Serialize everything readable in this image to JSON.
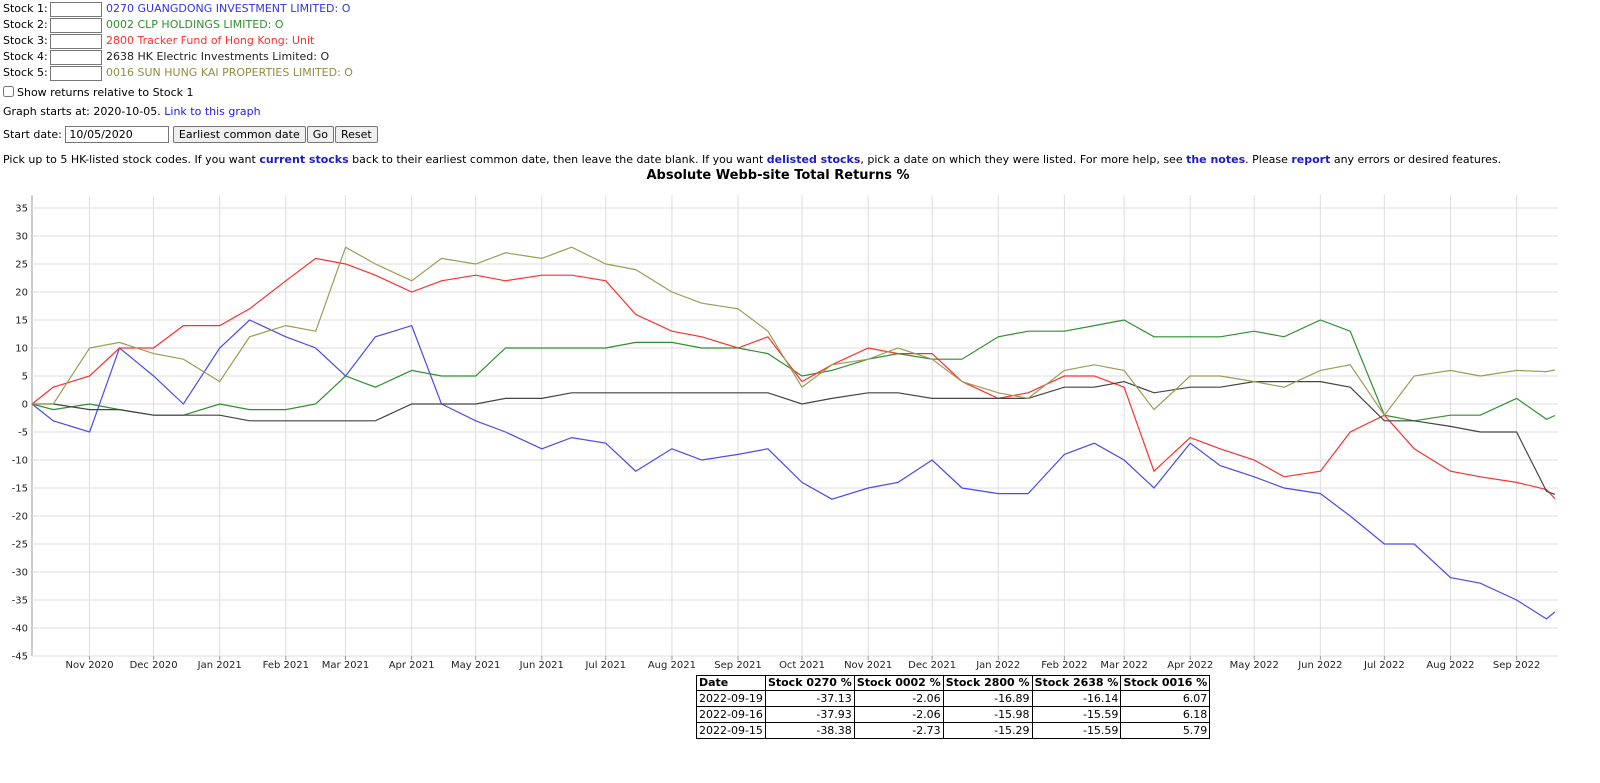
{
  "form": {
    "stocks": [
      {
        "label": "Stock 1:",
        "name": "0270 GUANGDONG INVESTMENT LIMITED: O"
      },
      {
        "label": "Stock 2:",
        "name": "0002 CLP HOLDINGS LIMITED: O"
      },
      {
        "label": "Stock 3:",
        "name": "2800 Tracker Fund of Hong Kong: Unit"
      },
      {
        "label": "Stock 4:",
        "name": "2638 HK Electric Investments Limited: O"
      },
      {
        "label": "Stock 5:",
        "name": "0016 SUN HUNG KAI PROPERTIES LIMITED: O"
      }
    ],
    "relative_label": "Show returns relative to Stock 1",
    "graph_starts": "Graph starts at: 2020-10-05.",
    "graph_link": "Link to this graph",
    "start_date_label": "Start date:",
    "start_date": "10/05/2020",
    "buttons": [
      "Earliest common date",
      "Go",
      "Reset"
    ]
  },
  "help": [
    {
      "text": "Pick up to 5 HK-listed stock codes. If you want "
    },
    {
      "link": "current stocks"
    },
    {
      "text": " back to their earliest common date, then leave the date blank. If you want "
    },
    {
      "link": "delisted stocks"
    },
    {
      "text": ", pick a date on which they were listed. For more help, see "
    },
    {
      "link": "the notes"
    },
    {
      "text": ". Please "
    },
    {
      "link": "report"
    },
    {
      "text": " any errors or desired features."
    }
  ],
  "chart_data": {
    "type": "line",
    "title": "Absolute Webb-site Total Returns %",
    "x": [
      "2020-10-05",
      "2020-10-15",
      "2020-11-01",
      "2020-11-15",
      "2020-12-01",
      "2020-12-15",
      "2021-01-01",
      "2021-01-15",
      "2021-02-01",
      "2021-02-15",
      "2021-03-01",
      "2021-03-15",
      "2021-04-01",
      "2021-04-15",
      "2021-05-01",
      "2021-05-15",
      "2021-06-01",
      "2021-06-15",
      "2021-07-01",
      "2021-07-15",
      "2021-08-01",
      "2021-08-15",
      "2021-09-01",
      "2021-09-15",
      "2021-10-01",
      "2021-10-15",
      "2021-11-01",
      "2021-11-15",
      "2021-12-01",
      "2021-12-15",
      "2022-01-01",
      "2022-01-15",
      "2022-02-01",
      "2022-02-15",
      "2022-03-01",
      "2022-03-15",
      "2022-04-01",
      "2022-04-15",
      "2022-05-01",
      "2022-05-15",
      "2022-06-01",
      "2022-06-15",
      "2022-07-01",
      "2022-07-15",
      "2022-08-01",
      "2022-08-15",
      "2022-09-01",
      "2022-09-15",
      "2022-09-19"
    ],
    "xlim": [
      "2020-10-05",
      "2022-09-19"
    ],
    "xticks": [
      {
        "value": "2020-11-01",
        "label": "Nov 2020"
      },
      {
        "value": "2020-12-01",
        "label": "Dec 2020"
      },
      {
        "value": "2021-01-01",
        "label": "Jan 2021"
      },
      {
        "value": "2021-02-01",
        "label": "Feb 2021"
      },
      {
        "value": "2021-03-01",
        "label": "Mar 2021"
      },
      {
        "value": "2021-04-01",
        "label": "Apr 2021"
      },
      {
        "value": "2021-05-01",
        "label": "May 2021"
      },
      {
        "value": "2021-06-01",
        "label": "Jun 2021"
      },
      {
        "value": "2021-07-01",
        "label": "Jul 2021"
      },
      {
        "value": "2021-08-01",
        "label": "Aug 2021"
      },
      {
        "value": "2021-09-01",
        "label": "Sep 2021"
      },
      {
        "value": "2021-10-01",
        "label": "Oct 2021"
      },
      {
        "value": "2021-11-01",
        "label": "Nov 2021"
      },
      {
        "value": "2021-12-01",
        "label": "Dec 2021"
      },
      {
        "value": "2022-01-01",
        "label": "Jan 2022"
      },
      {
        "value": "2022-02-01",
        "label": "Feb 2022"
      },
      {
        "value": "2022-03-01",
        "label": "Mar 2022"
      },
      {
        "value": "2022-04-01",
        "label": "Apr 2022"
      },
      {
        "value": "2022-05-01",
        "label": "May 2022"
      },
      {
        "value": "2022-06-01",
        "label": "Jun 2022"
      },
      {
        "value": "2022-07-01",
        "label": "Jul 2022"
      },
      {
        "value": "2022-08-01",
        "label": "Aug 2022"
      },
      {
        "value": "2022-09-01",
        "label": "Sep 2022"
      }
    ],
    "ylim": [
      -45,
      35
    ],
    "yticks": [
      -45,
      -40,
      -35,
      -30,
      -25,
      -20,
      -15,
      -10,
      -5,
      0,
      5,
      10,
      15,
      20,
      25,
      30,
      35
    ],
    "grid": true,
    "series": [
      {
        "name": "0270",
        "color": "#4a4af2",
        "values": [
          0,
          -3,
          -5,
          10,
          5,
          0,
          10,
          15,
          12,
          10,
          5,
          12,
          14,
          0,
          -3,
          -5,
          -8,
          -6,
          -7,
          -12,
          -8,
          -10,
          -9,
          -8,
          -14,
          -17,
          -15,
          -14,
          -10,
          -15,
          -16,
          -16,
          -9,
          -7,
          -10,
          -15,
          -7,
          -11,
          -13,
          -15,
          -16,
          -20,
          -25,
          -25,
          -31,
          -32,
          -35,
          -38.38,
          -37.13
        ]
      },
      {
        "name": "0002",
        "color": "#2f8f2f",
        "values": [
          0,
          -1,
          0,
          -1,
          -2,
          -2,
          0,
          -1,
          -1,
          0,
          5,
          3,
          6,
          5,
          5,
          10,
          10,
          10,
          10,
          11,
          11,
          10,
          10,
          9,
          5,
          6,
          8,
          9,
          8,
          8,
          12,
          13,
          13,
          14,
          15,
          12,
          12,
          12,
          13,
          12,
          15,
          13,
          -2,
          -3,
          -2,
          -2,
          1,
          -2.73,
          -2.06
        ]
      },
      {
        "name": "2800",
        "color": "#ff2e2e",
        "values": [
          0,
          3,
          5,
          10,
          10,
          14,
          14,
          17,
          22,
          26,
          25,
          23,
          20,
          22,
          23,
          22,
          23,
          23,
          22,
          16,
          13,
          12,
          10,
          12,
          4,
          7,
          10,
          9,
          9,
          4,
          1,
          2,
          5,
          5,
          3,
          -12,
          -6,
          -8,
          -10,
          -13,
          -12,
          -5,
          -2,
          -8,
          -12,
          -13,
          -14,
          -15.29,
          -16.89
        ]
      },
      {
        "name": "2638",
        "color": "#444444",
        "values": [
          0,
          0,
          -1,
          -1,
          -2,
          -2,
          -2,
          -3,
          -3,
          -3,
          -3,
          -3,
          0,
          0,
          0,
          1,
          1,
          2,
          2,
          2,
          2,
          2,
          2,
          2,
          0,
          1,
          2,
          2,
          1,
          1,
          1,
          1,
          3,
          3,
          4,
          2,
          3,
          3,
          4,
          4,
          4,
          3,
          -3,
          -3,
          -4,
          -5,
          -5,
          -15.59,
          -16.14
        ]
      },
      {
        "name": "0016",
        "color": "#9c9c55",
        "values": [
          0,
          0,
          10,
          11,
          9,
          8,
          4,
          12,
          14,
          13,
          28,
          25,
          22,
          26,
          25,
          27,
          26,
          28,
          25,
          24,
          20,
          18,
          17,
          13,
          3,
          7,
          8,
          10,
          8,
          4,
          2,
          1,
          6,
          7,
          6,
          -1,
          5,
          5,
          4,
          3,
          6,
          7,
          -2,
          5,
          6,
          5,
          6,
          5.79,
          6.07
        ]
      }
    ]
  },
  "table": {
    "headers": [
      "Date",
      "Stock 0270 %",
      "Stock 0002 %",
      "Stock 2800 %",
      "Stock 2638 %",
      "Stock 0016 %"
    ],
    "rows": [
      [
        "2022-09-19",
        "-37.13",
        "-2.06",
        "-16.89",
        "-16.14",
        "6.07"
      ],
      [
        "2022-09-16",
        "-37.93",
        "-2.06",
        "-15.98",
        "-15.59",
        "6.18"
      ],
      [
        "2022-09-15",
        "-38.38",
        "-2.73",
        "-15.29",
        "-15.59",
        "5.79"
      ]
    ]
  }
}
